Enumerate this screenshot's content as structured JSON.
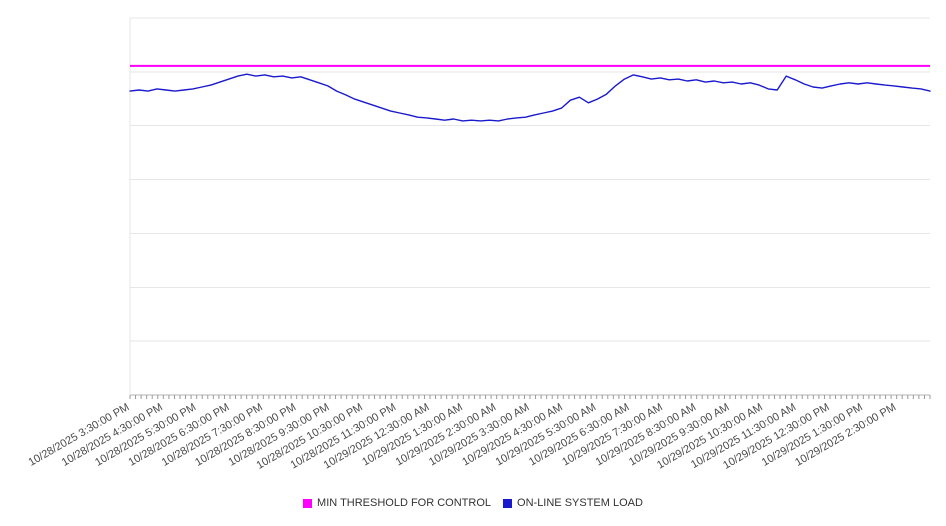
{
  "chart_data": {
    "type": "line",
    "title": "",
    "xlabel": "",
    "ylabel": "",
    "ylim": [
      0,
      100
    ],
    "y_axis_unlabeled": true,
    "grid": true,
    "grid_divisions": 7,
    "legend_position": "bottom-center",
    "minor_ticks_per_label": 6,
    "x_tick_labels": [
      "10/28/2025 3:30:00 PM",
      "10/28/2025 4:30:00 PM",
      "10/28/2025 5:30:00 PM",
      "10/28/2025 6:30:00 PM",
      "10/28/2025 7:30:00 PM",
      "10/28/2025 8:30:00 PM",
      "10/28/2025 9:30:00 PM",
      "10/28/2025 10:30:00 PM",
      "10/28/2025 11:30:00 PM",
      "10/29/2025 12:30:00 AM",
      "10/29/2025 1:30:00 AM",
      "10/29/2025 2:30:00 AM",
      "10/29/2025 3:30:00 AM",
      "10/29/2025 4:30:00 AM",
      "10/29/2025 5:30:00 AM",
      "10/29/2025 6:30:00 AM",
      "10/29/2025 7:30:00 AM",
      "10/29/2025 8:30:00 AM",
      "10/29/2025 9:30:00 AM",
      "10/29/2025 10:30:00 AM",
      "10/29/2025 11:30:00 AM",
      "10/29/2025 12:30:00 PM",
      "10/29/2025 1:30:00 PM",
      "10/29/2025 2:30:00 PM"
    ],
    "series": [
      {
        "name": "MIN THRESHOLD FOR CONTROL",
        "color": "#ff00ff",
        "style": "horizontal-threshold",
        "value": 87.3
      },
      {
        "name": "ON-LINE SYSTEM LOAD",
        "color": "#1a1acd",
        "style": "line",
        "values": [
          80.6,
          80.9,
          80.6,
          81.2,
          80.9,
          80.6,
          80.9,
          81.2,
          81.7,
          82.2,
          83.0,
          83.8,
          84.6,
          85.1,
          84.6,
          84.9,
          84.4,
          84.6,
          84.1,
          84.4,
          83.6,
          82.8,
          82.0,
          80.6,
          79.6,
          78.5,
          77.7,
          76.9,
          76.1,
          75.3,
          74.8,
          74.3,
          73.7,
          73.5,
          73.2,
          72.9,
          73.2,
          72.7,
          72.9,
          72.7,
          72.9,
          72.7,
          73.2,
          73.5,
          73.7,
          74.3,
          74.8,
          75.3,
          76.1,
          78.2,
          79.0,
          77.5,
          78.5,
          79.8,
          82.0,
          83.8,
          84.9,
          84.4,
          83.8,
          84.1,
          83.6,
          83.8,
          83.3,
          83.6,
          83.0,
          83.3,
          82.8,
          83.0,
          82.5,
          82.8,
          82.2,
          81.2,
          80.9,
          84.6,
          83.6,
          82.5,
          81.7,
          81.4,
          82.0,
          82.5,
          82.8,
          82.5,
          82.8,
          82.5,
          82.2,
          82.0,
          81.7,
          81.4,
          81.2,
          80.6
        ]
      }
    ]
  },
  "colors": {
    "background": "#ffffff",
    "gridline": "#e6e6e6",
    "axis": "#b3b3b3",
    "tick": "#999999",
    "axis_label_text": "#4a4a4a",
    "legend_text": "#333333"
  }
}
